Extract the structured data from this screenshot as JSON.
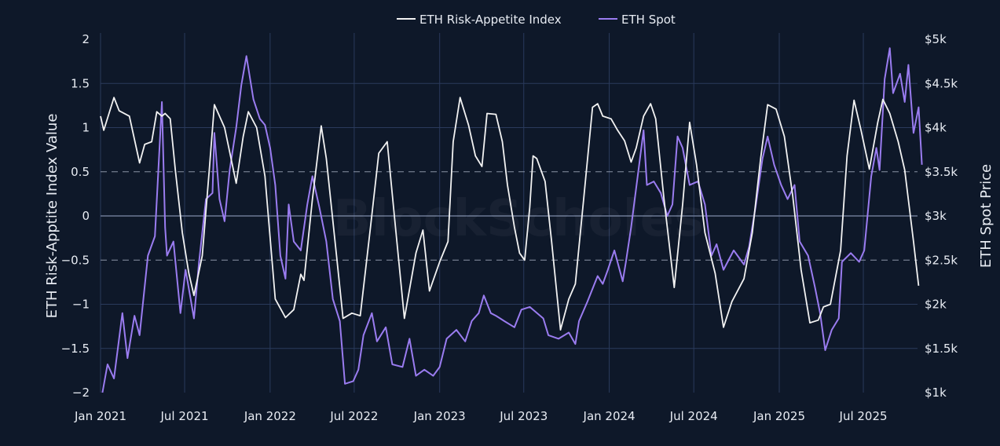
{
  "chart_data": {
    "type": "line",
    "title": "",
    "watermark": "BlockScholes",
    "xlabel": "",
    "ylabel_left": "ETH Risk-Apptite Index Value",
    "ylabel_right": "ETH Spot Price",
    "x_ticks": [
      "Jan 2021",
      "Jul 2021",
      "Jan 2022",
      "Jul 2022",
      "Jan 2023",
      "Jul 2023",
      "Jan 2024",
      "Jul 2024",
      "Jan 2025",
      "Jul 2025"
    ],
    "x_tick_dates": [
      "2021-01-01",
      "2021-07-01",
      "2022-01-01",
      "2022-07-01",
      "2023-01-01",
      "2023-07-01",
      "2024-01-01",
      "2024-07-01",
      "2025-01-01",
      "2025-07-01"
    ],
    "y_left_ticks": [
      "2",
      "1.5",
      "1",
      "0.5",
      "0",
      "−0.5",
      "−1",
      "−1.5",
      "−2"
    ],
    "y_left_tick_values": [
      2,
      1.5,
      1,
      0.5,
      0,
      -0.5,
      -1,
      -1.5,
      -2
    ],
    "y_right_ticks": [
      "$5k",
      "$4.5k",
      "$4k",
      "$3.5k",
      "$3k",
      "$2.5k",
      "$2k",
      "$1.5k",
      "$1k"
    ],
    "y_right_tick_values": [
      5000,
      4500,
      4000,
      3500,
      3000,
      2500,
      2000,
      1500,
      1000
    ],
    "ylim_left": [
      -2,
      2
    ],
    "ylim_right": [
      1000,
      5000
    ],
    "grid": true,
    "legend_position": "top-center",
    "series": [
      {
        "name": "ETH Risk-Appetite Index",
        "axis": "left",
        "color": "#f2f2f2",
        "points": [
          [
            "2021-01-01",
            1.13
          ],
          [
            "2021-01-08",
            0.97
          ],
          [
            "2021-01-30",
            1.34
          ],
          [
            "2021-02-10",
            1.19
          ],
          [
            "2021-03-04",
            1.13
          ],
          [
            "2021-03-26",
            0.6
          ],
          [
            "2021-04-06",
            0.81
          ],
          [
            "2021-04-21",
            0.84
          ],
          [
            "2021-05-02",
            1.18
          ],
          [
            "2021-05-13",
            1.13
          ],
          [
            "2021-05-20",
            1.16
          ],
          [
            "2021-05-31",
            1.1
          ],
          [
            "2021-06-11",
            0.52
          ],
          [
            "2021-06-26",
            -0.19
          ],
          [
            "2021-07-10",
            -0.65
          ],
          [
            "2021-07-21",
            -0.9
          ],
          [
            "2021-08-08",
            -0.45
          ],
          [
            "2021-08-23",
            0.52
          ],
          [
            "2021-09-03",
            1.26
          ],
          [
            "2021-09-25",
            1.0
          ],
          [
            "2021-10-20",
            0.37
          ],
          [
            "2021-11-04",
            0.9
          ],
          [
            "2021-11-15",
            1.18
          ],
          [
            "2021-12-03",
            1.0
          ],
          [
            "2021-12-21",
            0.45
          ],
          [
            "2022-01-12",
            -0.94
          ],
          [
            "2022-02-03",
            -1.15
          ],
          [
            "2022-02-21",
            -1.06
          ],
          [
            "2022-03-08",
            -0.66
          ],
          [
            "2022-03-15",
            -0.73
          ],
          [
            "2022-04-02",
            0.19
          ],
          [
            "2022-04-21",
            1.02
          ],
          [
            "2022-05-02",
            0.65
          ],
          [
            "2022-05-24",
            -0.45
          ],
          [
            "2022-06-07",
            -1.16
          ],
          [
            "2022-06-26",
            -1.1
          ],
          [
            "2022-07-14",
            -1.13
          ],
          [
            "2022-08-05",
            -0.13
          ],
          [
            "2022-08-23",
            0.71
          ],
          [
            "2022-09-10",
            0.84
          ],
          [
            "2022-09-25",
            0.03
          ],
          [
            "2022-10-17",
            -1.16
          ],
          [
            "2022-11-11",
            -0.42
          ],
          [
            "2022-11-26",
            -0.16
          ],
          [
            "2022-12-10",
            -0.85
          ],
          [
            "2023-01-01",
            -0.52
          ],
          [
            "2023-01-19",
            -0.29
          ],
          [
            "2023-01-30",
            0.84
          ],
          [
            "2023-02-14",
            1.34
          ],
          [
            "2023-03-04",
            1.03
          ],
          [
            "2023-03-19",
            0.68
          ],
          [
            "2023-04-02",
            0.56
          ],
          [
            "2023-04-13",
            1.16
          ],
          [
            "2023-05-02",
            1.15
          ],
          [
            "2023-05-16",
            0.84
          ],
          [
            "2023-05-27",
            0.35
          ],
          [
            "2023-06-11",
            -0.13
          ],
          [
            "2023-06-22",
            -0.42
          ],
          [
            "2023-07-03",
            -0.5
          ],
          [
            "2023-07-14",
            0.1
          ],
          [
            "2023-07-21",
            0.68
          ],
          [
            "2023-07-29",
            0.65
          ],
          [
            "2023-08-16",
            0.39
          ],
          [
            "2023-08-30",
            -0.29
          ],
          [
            "2023-09-18",
            -1.29
          ],
          [
            "2023-10-06",
            -0.94
          ],
          [
            "2023-10-20",
            -0.77
          ],
          [
            "2023-11-07",
            0.19
          ],
          [
            "2023-11-26",
            1.23
          ],
          [
            "2023-12-07",
            1.27
          ],
          [
            "2023-12-18",
            1.13
          ],
          [
            "2024-01-05",
            1.1
          ],
          [
            "2024-01-19",
            0.97
          ],
          [
            "2024-02-03",
            0.85
          ],
          [
            "2024-02-17",
            0.61
          ],
          [
            "2024-02-28",
            0.77
          ],
          [
            "2024-03-15",
            1.13
          ],
          [
            "2024-03-30",
            1.27
          ],
          [
            "2024-04-10",
            1.1
          ],
          [
            "2024-04-28",
            0.19
          ],
          [
            "2024-05-20",
            -0.81
          ],
          [
            "2024-06-07",
            0.13
          ],
          [
            "2024-06-22",
            1.06
          ],
          [
            "2024-07-07",
            0.58
          ],
          [
            "2024-07-25",
            -0.19
          ],
          [
            "2024-08-16",
            -0.65
          ],
          [
            "2024-09-03",
            -1.26
          ],
          [
            "2024-09-21",
            -0.97
          ],
          [
            "2024-10-17",
            -0.71
          ],
          [
            "2024-11-04",
            -0.19
          ],
          [
            "2024-11-22",
            0.65
          ],
          [
            "2024-12-07",
            1.26
          ],
          [
            "2024-12-25",
            1.21
          ],
          [
            "2025-01-12",
            0.9
          ],
          [
            "2025-01-30",
            0.23
          ],
          [
            "2025-02-17",
            -0.61
          ],
          [
            "2025-03-08",
            -1.21
          ],
          [
            "2025-03-26",
            -1.18
          ],
          [
            "2025-04-06",
            -1.03
          ],
          [
            "2025-04-21",
            -1.0
          ],
          [
            "2025-05-13",
            -0.39
          ],
          [
            "2025-05-27",
            0.68
          ],
          [
            "2025-06-11",
            1.31
          ],
          [
            "2025-06-26",
            0.97
          ],
          [
            "2025-07-14",
            0.53
          ],
          [
            "2025-08-01",
            1.06
          ],
          [
            "2025-08-12",
            1.32
          ],
          [
            "2025-08-27",
            1.16
          ],
          [
            "2025-09-14",
            0.84
          ],
          [
            "2025-09-28",
            0.52
          ],
          [
            "2025-10-17",
            -0.29
          ],
          [
            "2025-10-28",
            -0.79
          ]
        ]
      },
      {
        "name": "ETH Spot",
        "axis": "right",
        "color": "#9a7cf0",
        "points": [
          [
            "2021-01-05",
            1000
          ],
          [
            "2021-01-16",
            1320
          ],
          [
            "2021-01-30",
            1160
          ],
          [
            "2021-02-17",
            1900
          ],
          [
            "2021-02-28",
            1390
          ],
          [
            "2021-03-15",
            1870
          ],
          [
            "2021-03-26",
            1650
          ],
          [
            "2021-04-13",
            2550
          ],
          [
            "2021-04-28",
            2770
          ],
          [
            "2021-05-13",
            4290
          ],
          [
            "2021-05-20",
            2870
          ],
          [
            "2021-05-24",
            2550
          ],
          [
            "2021-06-07",
            2710
          ],
          [
            "2021-06-22",
            1900
          ],
          [
            "2021-07-03",
            2390
          ],
          [
            "2021-07-14",
            2060
          ],
          [
            "2021-07-21",
            1840
          ],
          [
            "2021-08-01",
            2480
          ],
          [
            "2021-08-16",
            3190
          ],
          [
            "2021-08-30",
            3260
          ],
          [
            "2021-09-03",
            3940
          ],
          [
            "2021-09-14",
            3190
          ],
          [
            "2021-09-25",
            2940
          ],
          [
            "2021-10-06",
            3520
          ],
          [
            "2021-10-20",
            4000
          ],
          [
            "2021-10-31",
            4480
          ],
          [
            "2021-11-11",
            4810
          ],
          [
            "2021-11-26",
            4320
          ],
          [
            "2021-12-10",
            4100
          ],
          [
            "2021-12-21",
            4030
          ],
          [
            "2022-01-01",
            3770
          ],
          [
            "2022-01-12",
            3350
          ],
          [
            "2022-01-23",
            2550
          ],
          [
            "2022-02-03",
            2290
          ],
          [
            "2022-02-10",
            3130
          ],
          [
            "2022-02-21",
            2710
          ],
          [
            "2022-03-08",
            2610
          ],
          [
            "2022-03-22",
            3130
          ],
          [
            "2022-04-02",
            3450
          ],
          [
            "2022-04-17",
            3100
          ],
          [
            "2022-05-02",
            2710
          ],
          [
            "2022-05-16",
            2060
          ],
          [
            "2022-05-31",
            1810
          ],
          [
            "2022-06-11",
            1100
          ],
          [
            "2022-06-29",
            1130
          ],
          [
            "2022-07-10",
            1260
          ],
          [
            "2022-07-21",
            1650
          ],
          [
            "2022-08-08",
            1900
          ],
          [
            "2022-08-19",
            1580
          ],
          [
            "2022-09-07",
            1740
          ],
          [
            "2022-09-21",
            1320
          ],
          [
            "2022-10-13",
            1290
          ],
          [
            "2022-10-28",
            1610
          ],
          [
            "2022-11-11",
            1190
          ],
          [
            "2022-11-29",
            1260
          ],
          [
            "2022-12-18",
            1190
          ],
          [
            "2023-01-01",
            1290
          ],
          [
            "2023-01-16",
            1610
          ],
          [
            "2023-02-06",
            1710
          ],
          [
            "2023-02-25",
            1580
          ],
          [
            "2023-03-11",
            1810
          ],
          [
            "2023-03-26",
            1900
          ],
          [
            "2023-04-06",
            2100
          ],
          [
            "2023-04-21",
            1900
          ],
          [
            "2023-05-02",
            1870
          ],
          [
            "2023-05-20",
            1810
          ],
          [
            "2023-06-11",
            1740
          ],
          [
            "2023-06-26",
            1940
          ],
          [
            "2023-07-14",
            1970
          ],
          [
            "2023-08-12",
            1840
          ],
          [
            "2023-08-23",
            1650
          ],
          [
            "2023-09-14",
            1610
          ],
          [
            "2023-10-06",
            1680
          ],
          [
            "2023-10-20",
            1550
          ],
          [
            "2023-10-28",
            1810
          ],
          [
            "2023-11-15",
            2030
          ],
          [
            "2023-12-07",
            2320
          ],
          [
            "2023-12-18",
            2230
          ],
          [
            "2023-12-29",
            2390
          ],
          [
            "2024-01-12",
            2610
          ],
          [
            "2024-01-30",
            2260
          ],
          [
            "2024-02-06",
            2480
          ],
          [
            "2024-02-17",
            2870
          ],
          [
            "2024-03-04",
            3520
          ],
          [
            "2024-03-15",
            3970
          ],
          [
            "2024-03-22",
            3350
          ],
          [
            "2024-04-06",
            3390
          ],
          [
            "2024-04-21",
            3260
          ],
          [
            "2024-05-05",
            3000
          ],
          [
            "2024-05-16",
            3130
          ],
          [
            "2024-05-27",
            3900
          ],
          [
            "2024-06-07",
            3770
          ],
          [
            "2024-06-22",
            3350
          ],
          [
            "2024-07-10",
            3390
          ],
          [
            "2024-07-25",
            3130
          ],
          [
            "2024-08-08",
            2550
          ],
          [
            "2024-08-19",
            2680
          ],
          [
            "2024-09-03",
            2390
          ],
          [
            "2024-09-25",
            2610
          ],
          [
            "2024-10-17",
            2450
          ],
          [
            "2024-10-28",
            2650
          ],
          [
            "2024-11-11",
            3100
          ],
          [
            "2024-11-26",
            3650
          ],
          [
            "2024-12-07",
            3900
          ],
          [
            "2024-12-21",
            3580
          ],
          [
            "2025-01-05",
            3350
          ],
          [
            "2025-01-19",
            3190
          ],
          [
            "2025-02-03",
            3350
          ],
          [
            "2025-02-14",
            2710
          ],
          [
            "2025-03-04",
            2550
          ],
          [
            "2025-03-19",
            2190
          ],
          [
            "2025-03-30",
            1900
          ],
          [
            "2025-04-10",
            1480
          ],
          [
            "2025-04-24",
            1710
          ],
          [
            "2025-05-09",
            1840
          ],
          [
            "2025-05-16",
            2480
          ],
          [
            "2025-06-04",
            2580
          ],
          [
            "2025-06-22",
            2480
          ],
          [
            "2025-07-03",
            2610
          ],
          [
            "2025-07-18",
            3450
          ],
          [
            "2025-07-29",
            3770
          ],
          [
            "2025-08-05",
            3520
          ],
          [
            "2025-08-16",
            4550
          ],
          [
            "2025-08-27",
            4900
          ],
          [
            "2025-09-03",
            4390
          ],
          [
            "2025-09-18",
            4610
          ],
          [
            "2025-09-28",
            4290
          ],
          [
            "2025-10-06",
            4710
          ],
          [
            "2025-10-17",
            3940
          ],
          [
            "2025-10-28",
            4230
          ],
          [
            "2025-11-04",
            3580
          ]
        ]
      }
    ]
  }
}
